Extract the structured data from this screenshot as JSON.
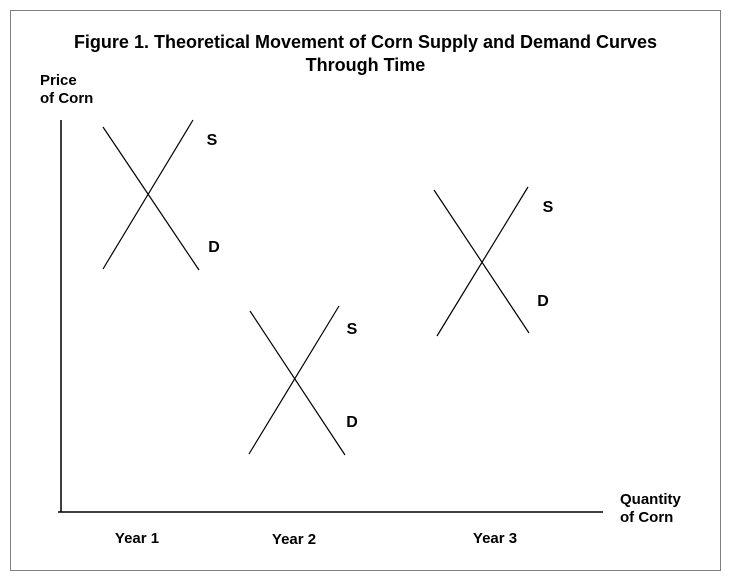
{
  "chart_data": {
    "type": "line",
    "title_line1": "Figure 1. Theoretical Movement of Corn Supply and Demand Curves",
    "title_line2": "Through Time",
    "ylabel_line1": "Price",
    "ylabel_line2": "of Corn",
    "xlabel_line1": "Quantity",
    "xlabel_line2": "of Corn",
    "categories": [
      "Year 1",
      "Year 2",
      "Year 3"
    ],
    "grid": false,
    "axis_color": "#000000",
    "line_color": "#000000",
    "supply_label": "S",
    "demand_label": "D",
    "pairs": [
      {
        "year": "Year 1",
        "supply_label": "S",
        "demand_label": "D"
      },
      {
        "year": "Year 2",
        "supply_label": "S",
        "demand_label": "D"
      },
      {
        "year": "Year 3",
        "supply_label": "S",
        "demand_label": "D"
      }
    ]
  }
}
